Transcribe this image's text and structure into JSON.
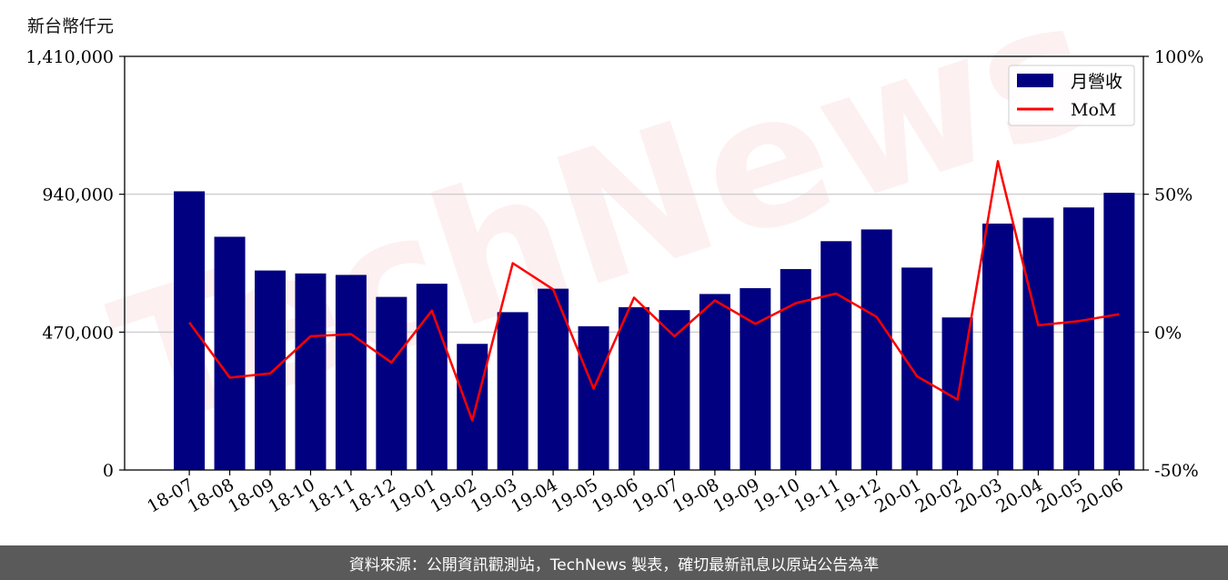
{
  "unit_label": "新台幣仟元",
  "footer_text": "資料來源：公開資訊觀測站，TechNews 製表，確切最新訊息以原站公告為準",
  "watermark_text": "TechNews",
  "colors": {
    "bar": "#000080",
    "line": "#ff0000",
    "grid": "#d0d0d0",
    "footer_bg": "#5a5a5a"
  },
  "chart_data": {
    "type": "bar",
    "categories": [
      "18-07",
      "18-08",
      "18-09",
      "18-10",
      "18-11",
      "18-12",
      "19-01",
      "19-02",
      "19-03",
      "19-04",
      "19-05",
      "19-06",
      "19-07",
      "19-08",
      "19-09",
      "19-10",
      "19-11",
      "19-12",
      "20-01",
      "20-02",
      "20-03",
      "20-04",
      "20-05",
      "20-06"
    ],
    "series": [
      {
        "name": "月營收",
        "type": "bar",
        "axis": "left",
        "values": [
          950000,
          795000,
          680000,
          670000,
          665000,
          590000,
          635000,
          430000,
          538000,
          618000,
          490000,
          555000,
          545000,
          600000,
          620000,
          685000,
          780000,
          820000,
          690000,
          520000,
          840000,
          860000,
          895000,
          945000
        ]
      },
      {
        "name": "MoM",
        "type": "line",
        "axis": "right",
        "values": [
          3.5,
          -16.5,
          -15.0,
          -1.5,
          -0.7,
          -11.0,
          7.8,
          -32.0,
          25.0,
          15.5,
          -20.5,
          12.5,
          -1.5,
          11.5,
          3.0,
          10.5,
          14.0,
          5.5,
          -16.0,
          -24.5,
          62.0,
          2.5,
          4.0,
          6.5
        ]
      }
    ],
    "y_left": {
      "ylim": [
        0,
        1410000
      ],
      "ticks": [
        0,
        470000,
        940000,
        1410000
      ],
      "tick_labels": [
        "0",
        "470,000",
        "940,000",
        "1,410,000"
      ]
    },
    "y_right": {
      "ylim": [
        -50,
        100
      ],
      "ticks": [
        -50,
        0,
        50,
        100
      ],
      "tick_labels": [
        "-50%",
        "0%",
        "50%",
        "100%"
      ]
    },
    "grid": "horizontal",
    "legend_position": "top-right"
  }
}
